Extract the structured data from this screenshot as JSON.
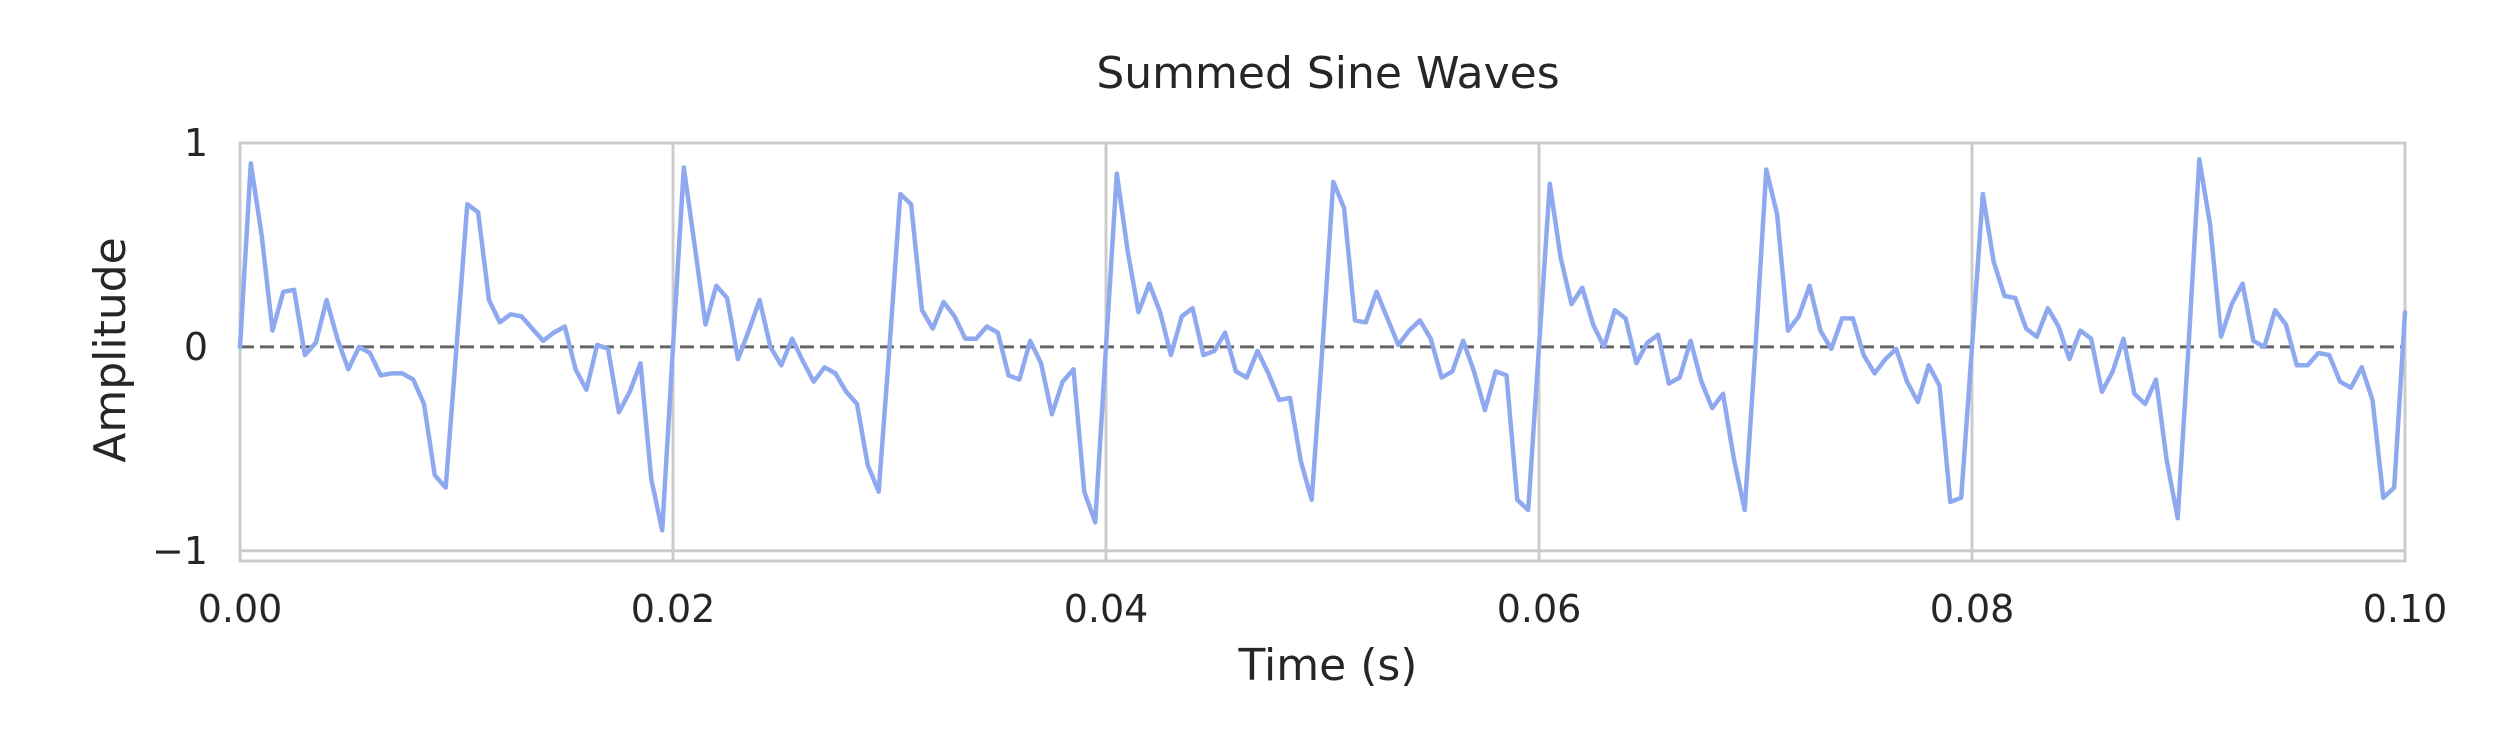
{
  "chart_data": {
    "type": "line",
    "title": "Summed Sine Waves",
    "xlabel": "Time (s)",
    "ylabel": "Amplitude",
    "xlim": [
      0,
      0.1
    ],
    "ylim": [
      -1.05,
      1.0
    ],
    "x_ticks": [
      0,
      0.02,
      0.04,
      0.06,
      0.08,
      0.1
    ],
    "x_tick_labels": [
      "0.00",
      "0.02",
      "0.04",
      "0.06",
      "0.08",
      "0.10"
    ],
    "y_ticks": [
      -1,
      0,
      1
    ],
    "y_tick_labels": [
      "−1",
      "0",
      "1"
    ],
    "grid": "x",
    "reference_line": {
      "y": 0,
      "style": "dashed",
      "color": "#666666"
    },
    "colors": {
      "series": "#8ea9ef"
    },
    "series": [
      {
        "x": [
          0.0,
          0.0005,
          0.001,
          0.0015,
          0.002,
          0.0025,
          0.003,
          0.0035,
          0.004,
          0.0045,
          0.005,
          0.0055,
          0.006,
          0.0065,
          0.007,
          0.0075,
          0.008,
          0.0085,
          0.009,
          0.0095,
          0.01,
          0.0105,
          0.011,
          0.0115,
          0.012,
          0.0125,
          0.013,
          0.0135,
          0.014,
          0.0145,
          0.015,
          0.0155,
          0.016,
          0.0165,
          0.017,
          0.0175,
          0.018,
          0.0185,
          0.019,
          0.0195,
          0.02,
          0.0205,
          0.021,
          0.0215,
          0.022,
          0.0225,
          0.023,
          0.0235,
          0.024,
          0.0245,
          0.025,
          0.0255,
          0.026,
          0.0265,
          0.027,
          0.0275,
          0.028,
          0.0285,
          0.029,
          0.0295,
          0.03,
          0.0305,
          0.031,
          0.0315,
          0.032,
          0.0325,
          0.033,
          0.0335,
          0.034,
          0.0345,
          0.035,
          0.0355,
          0.036,
          0.0365,
          0.037,
          0.0375,
          0.038,
          0.0385,
          0.039,
          0.0395,
          0.04,
          0.0405,
          0.041,
          0.0415,
          0.042,
          0.0425,
          0.043,
          0.0435,
          0.044,
          0.0445,
          0.045,
          0.0455,
          0.046,
          0.0465,
          0.047,
          0.0475,
          0.048,
          0.0485,
          0.049,
          0.0495,
          0.05,
          0.0505,
          0.051,
          0.0515,
          0.052,
          0.0525,
          0.053,
          0.0535,
          0.054,
          0.0545,
          0.055,
          0.0555,
          0.056,
          0.0565,
          0.057,
          0.0575,
          0.058,
          0.0585,
          0.059,
          0.0595,
          0.06,
          0.0605,
          0.061,
          0.0615,
          0.062,
          0.0625,
          0.063,
          0.0635,
          0.064,
          0.0645,
          0.065,
          0.0655,
          0.066,
          0.0665,
          0.067,
          0.0675,
          0.068,
          0.0685,
          0.069,
          0.0695,
          0.07,
          0.0705,
          0.071,
          0.0715,
          0.072,
          0.0725,
          0.073,
          0.0735,
          0.074,
          0.0745,
          0.075,
          0.0755,
          0.076,
          0.0765,
          0.077,
          0.0775,
          0.078,
          0.0785,
          0.079,
          0.0795,
          0.08,
          0.0805,
          0.081,
          0.0815,
          0.082,
          0.0825,
          0.083,
          0.0835,
          0.084,
          0.0845,
          0.085,
          0.0855,
          0.086,
          0.0865,
          0.087,
          0.0875,
          0.088,
          0.0885,
          0.089,
          0.0895,
          0.09,
          0.0905,
          0.091,
          0.0915,
          0.092,
          0.0925,
          0.093,
          0.0935,
          0.094,
          0.0945,
          0.095,
          0.0955,
          0.096,
          0.0965,
          0.097,
          0.0975,
          0.098,
          0.0985,
          0.099,
          0.0995,
          0.1
        ],
        "y": [
          0.0,
          0.9,
          0.55,
          0.08,
          0.27,
          0.28,
          -0.04,
          0.02,
          0.23,
          0.04,
          -0.11,
          0.0,
          -0.03,
          -0.14,
          -0.13,
          -0.13,
          -0.16,
          -0.28,
          -0.63,
          -0.69,
          0.0,
          0.7,
          0.66,
          0.23,
          0.12,
          0.16,
          0.15,
          0.09,
          0.03,
          0.07,
          0.1,
          -0.11,
          -0.21,
          0.01,
          -0.01,
          -0.32,
          -0.22,
          -0.08,
          -0.65,
          -0.9,
          0.0,
          0.88,
          0.5,
          0.11,
          0.3,
          0.24,
          -0.06,
          0.08,
          0.23,
          0.0,
          -0.09,
          0.04,
          -0.07,
          -0.17,
          -0.1,
          -0.13,
          -0.22,
          -0.28,
          -0.58,
          -0.71,
          0.0,
          0.75,
          0.7,
          0.18,
          0.09,
          0.22,
          0.15,
          0.04,
          0.04,
          0.1,
          0.07,
          -0.14,
          -0.16,
          0.03,
          -0.08,
          -0.33,
          -0.17,
          -0.11,
          -0.71,
          -0.86,
          0.0,
          0.85,
          0.47,
          0.17,
          0.31,
          0.17,
          -0.04,
          0.15,
          0.19,
          -0.04,
          -0.02,
          0.07,
          -0.12,
          -0.15,
          -0.02,
          -0.13,
          -0.26,
          -0.25,
          -0.56,
          -0.75,
          0.0,
          0.81,
          0.68,
          0.13,
          0.12,
          0.27,
          0.14,
          0.01,
          0.08,
          0.13,
          0.04,
          -0.15,
          -0.12,
          0.03,
          -0.12,
          -0.31,
          -0.12,
          -0.14,
          -0.75,
          -0.8,
          0.0,
          0.8,
          0.44,
          0.21,
          0.29,
          0.11,
          0.0,
          0.18,
          0.14,
          -0.08,
          0.02,
          0.06,
          -0.18,
          -0.15,
          0.03,
          -0.17,
          -0.3,
          -0.23,
          -0.55,
          -0.8,
          0.0,
          0.87,
          0.65,
          0.08,
          0.15,
          0.3,
          0.08,
          -0.01,
          0.14,
          0.14,
          -0.04,
          -0.13,
          -0.06,
          -0.01,
          -0.17,
          -0.27,
          -0.09,
          -0.19,
          -0.76,
          -0.74,
          0.0,
          0.75,
          0.42,
          0.25,
          0.24,
          0.09,
          0.05,
          0.19,
          0.1,
          -0.06,
          0.08,
          0.04,
          -0.22,
          -0.12,
          0.04,
          -0.23,
          -0.28,
          -0.16,
          -0.56,
          -0.84,
          0.0,
          0.92,
          0.6,
          0.05,
          0.21,
          0.31,
          0.03,
          0.0,
          0.18,
          0.11,
          -0.09,
          -0.09,
          -0.03,
          -0.04,
          -0.17,
          -0.2,
          -0.1,
          -0.26,
          -0.74,
          -0.69,
          0.17
        ]
      }
    ]
  }
}
